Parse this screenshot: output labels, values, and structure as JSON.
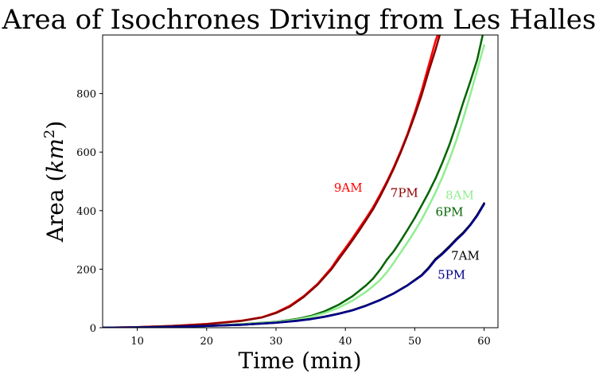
{
  "chart_data": {
    "type": "line",
    "title": "Area of Isochrones Driving from Les Halles",
    "xlabel": "Time (min)",
    "ylabel_text": "Area (",
    "ylabel_math": "km",
    "ylabel_superscript": "2",
    "ylabel_close": ")",
    "xlim": [
      5,
      62
    ],
    "ylim": [
      0,
      1000
    ],
    "xticks": [
      10,
      20,
      30,
      40,
      50,
      60
    ],
    "yticks": [
      0,
      200,
      400,
      600,
      800
    ],
    "grid": false,
    "legend": "none",
    "series": [
      {
        "name": "9AM",
        "color": "#ff0000",
        "label_at": [
          40.4,
          475
        ],
        "points": [
          [
            5,
            0
          ],
          [
            10,
            2
          ],
          [
            15,
            6
          ],
          [
            20,
            13
          ],
          [
            25,
            24
          ],
          [
            28,
            36
          ],
          [
            30,
            52
          ],
          [
            32,
            75
          ],
          [
            34,
            108
          ],
          [
            36,
            150
          ],
          [
            38,
            205
          ],
          [
            39,
            240
          ],
          [
            40,
            272
          ],
          [
            41,
            305
          ],
          [
            42,
            340
          ],
          [
            43,
            375
          ],
          [
            44,
            412
          ],
          [
            45,
            455
          ],
          [
            46,
            500
          ],
          [
            47,
            550
          ],
          [
            48,
            605
          ],
          [
            49,
            665
          ],
          [
            50,
            735
          ],
          [
            51,
            810
          ],
          [
            52,
            895
          ],
          [
            53,
            980
          ],
          [
            53.3,
            1000
          ]
        ]
      },
      {
        "name": "7PM",
        "color": "#8b0000",
        "label_at": [
          48.5,
          458
        ],
        "points": [
          [
            5,
            0
          ],
          [
            10,
            2
          ],
          [
            15,
            6
          ],
          [
            20,
            12
          ],
          [
            25,
            23
          ],
          [
            28,
            35
          ],
          [
            30,
            50
          ],
          [
            32,
            72
          ],
          [
            34,
            105
          ],
          [
            36,
            147
          ],
          [
            38,
            200
          ],
          [
            39,
            233
          ],
          [
            40,
            265
          ],
          [
            41,
            298
          ],
          [
            42,
            332
          ],
          [
            43,
            368
          ],
          [
            44,
            405
          ],
          [
            45,
            448
          ],
          [
            46,
            495
          ],
          [
            47,
            545
          ],
          [
            48,
            600
          ],
          [
            49,
            660
          ],
          [
            50,
            725
          ],
          [
            51,
            795
          ],
          [
            52,
            875
          ],
          [
            53,
            950
          ],
          [
            53.6,
            1000
          ]
        ]
      },
      {
        "name": "6PM",
        "color": "#006400",
        "label_at": [
          55,
          393
        ],
        "points": [
          [
            5,
            0
          ],
          [
            10,
            1
          ],
          [
            15,
            3
          ],
          [
            20,
            6
          ],
          [
            25,
            12
          ],
          [
            30,
            20
          ],
          [
            33,
            30
          ],
          [
            35,
            40
          ],
          [
            37,
            56
          ],
          [
            39,
            78
          ],
          [
            41,
            107
          ],
          [
            43,
            145
          ],
          [
            44,
            168
          ],
          [
            45,
            198
          ],
          [
            46,
            233
          ],
          [
            47,
            262
          ],
          [
            48,
            298
          ],
          [
            49,
            336
          ],
          [
            50,
            375
          ],
          [
            51,
            418
          ],
          [
            52,
            462
          ],
          [
            53,
            510
          ],
          [
            54,
            565
          ],
          [
            55,
            625
          ],
          [
            56,
            695
          ],
          [
            57,
            770
          ],
          [
            58,
            840
          ],
          [
            59,
            915
          ],
          [
            59.8,
            1000
          ]
        ]
      },
      {
        "name": "8AM",
        "color": "#90ee90",
        "label_at": [
          56.5,
          450
        ],
        "points": [
          [
            5,
            0
          ],
          [
            10,
            1
          ],
          [
            15,
            3
          ],
          [
            20,
            6
          ],
          [
            25,
            11
          ],
          [
            30,
            19
          ],
          [
            33,
            28
          ],
          [
            35,
            37
          ],
          [
            37,
            50
          ],
          [
            39,
            68
          ],
          [
            41,
            92
          ],
          [
            43,
            123
          ],
          [
            44,
            142
          ],
          [
            45,
            163
          ],
          [
            46,
            190
          ],
          [
            47,
            223
          ],
          [
            48,
            258
          ],
          [
            49,
            293
          ],
          [
            50,
            330
          ],
          [
            51,
            370
          ],
          [
            52,
            415
          ],
          [
            53,
            462
          ],
          [
            54,
            515
          ],
          [
            55,
            575
          ],
          [
            56,
            640
          ],
          [
            57,
            715
          ],
          [
            58,
            795
          ],
          [
            59,
            880
          ],
          [
            60,
            965
          ]
        ]
      },
      {
        "name": "7AM",
        "color": "#000000",
        "label_at": [
          57.3,
          243
        ],
        "points": [
          [
            5,
            0
          ],
          [
            10,
            1
          ],
          [
            15,
            3
          ],
          [
            20,
            6
          ],
          [
            25,
            10
          ],
          [
            30,
            17
          ],
          [
            33,
            24
          ],
          [
            35,
            30
          ],
          [
            37,
            38
          ],
          [
            39,
            48
          ],
          [
            41,
            60
          ],
          [
            43,
            76
          ],
          [
            45,
            95
          ],
          [
            47,
            118
          ],
          [
            49,
            146
          ],
          [
            51,
            180
          ],
          [
            52,
            205
          ],
          [
            53,
            235
          ],
          [
            54,
            255
          ],
          [
            55,
            278
          ],
          [
            56,
            303
          ],
          [
            57,
            325
          ],
          [
            58,
            352
          ],
          [
            59,
            385
          ],
          [
            60,
            425
          ]
        ]
      },
      {
        "name": "5PM",
        "color": "#00008b",
        "label_at": [
          55.3,
          178
        ],
        "points": [
          [
            5,
            0
          ],
          [
            10,
            1
          ],
          [
            15,
            3
          ],
          [
            20,
            6
          ],
          [
            25,
            10
          ],
          [
            30,
            17
          ],
          [
            33,
            23
          ],
          [
            35,
            29
          ],
          [
            37,
            37
          ],
          [
            39,
            47
          ],
          [
            41,
            59
          ],
          [
            43,
            75
          ],
          [
            45,
            94
          ],
          [
            47,
            117
          ],
          [
            49,
            145
          ],
          [
            51,
            178
          ],
          [
            52,
            202
          ],
          [
            53,
            232
          ],
          [
            54,
            252
          ],
          [
            55,
            275
          ],
          [
            56,
            300
          ],
          [
            57,
            322
          ],
          [
            58,
            350
          ],
          [
            59,
            382
          ],
          [
            60,
            422
          ]
        ]
      }
    ]
  }
}
